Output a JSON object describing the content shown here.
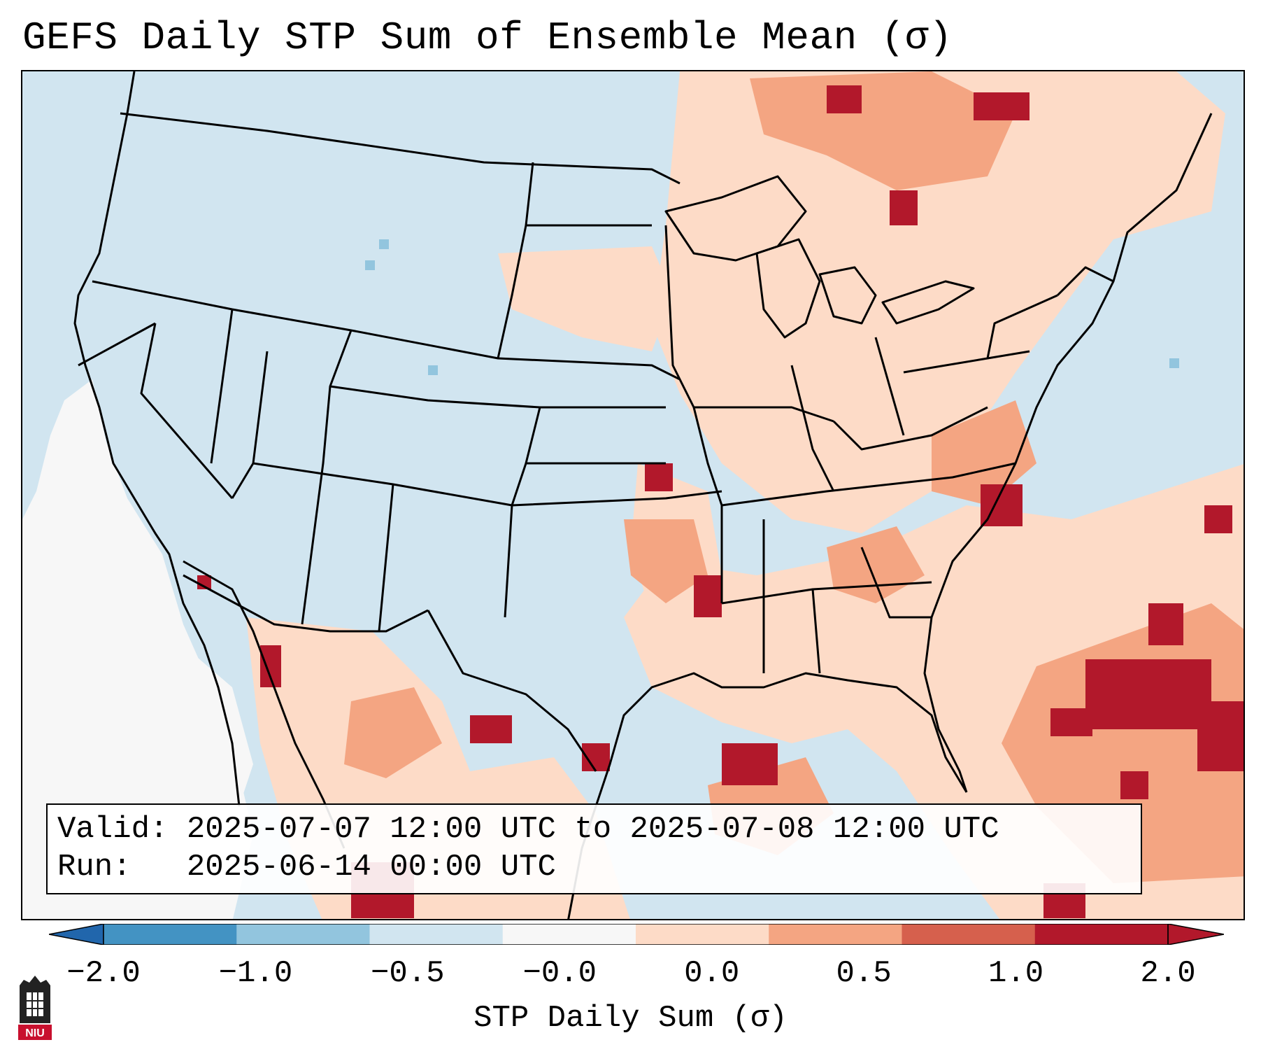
{
  "title": "GEFS Daily STP Sum of Ensemble Mean (σ)",
  "info": {
    "valid_line": "Valid: 2025-07-07 12:00 UTC to 2025-07-08 12:00 UTC",
    "run_line": "Run:   2025-06-14 00:00 UTC"
  },
  "colorbar": {
    "label": "STP Daily Sum (σ)",
    "ticks": [
      "−2.0",
      "−1.0",
      "−0.5",
      "−0.0",
      "0.0",
      "0.5",
      "1.0",
      "2.0"
    ],
    "colors": [
      "#4393c3",
      "#92c5de",
      "#d1e5f0",
      "#f7f7f7",
      "#fddbc7",
      "#f4a582",
      "#d6604d",
      "#b2182b"
    ],
    "extend_low_color": "#2166ac",
    "extend_high_color": "#b2182b"
  },
  "logo": {
    "text": "NIU",
    "icon": "niu-castle-logo"
  }
}
